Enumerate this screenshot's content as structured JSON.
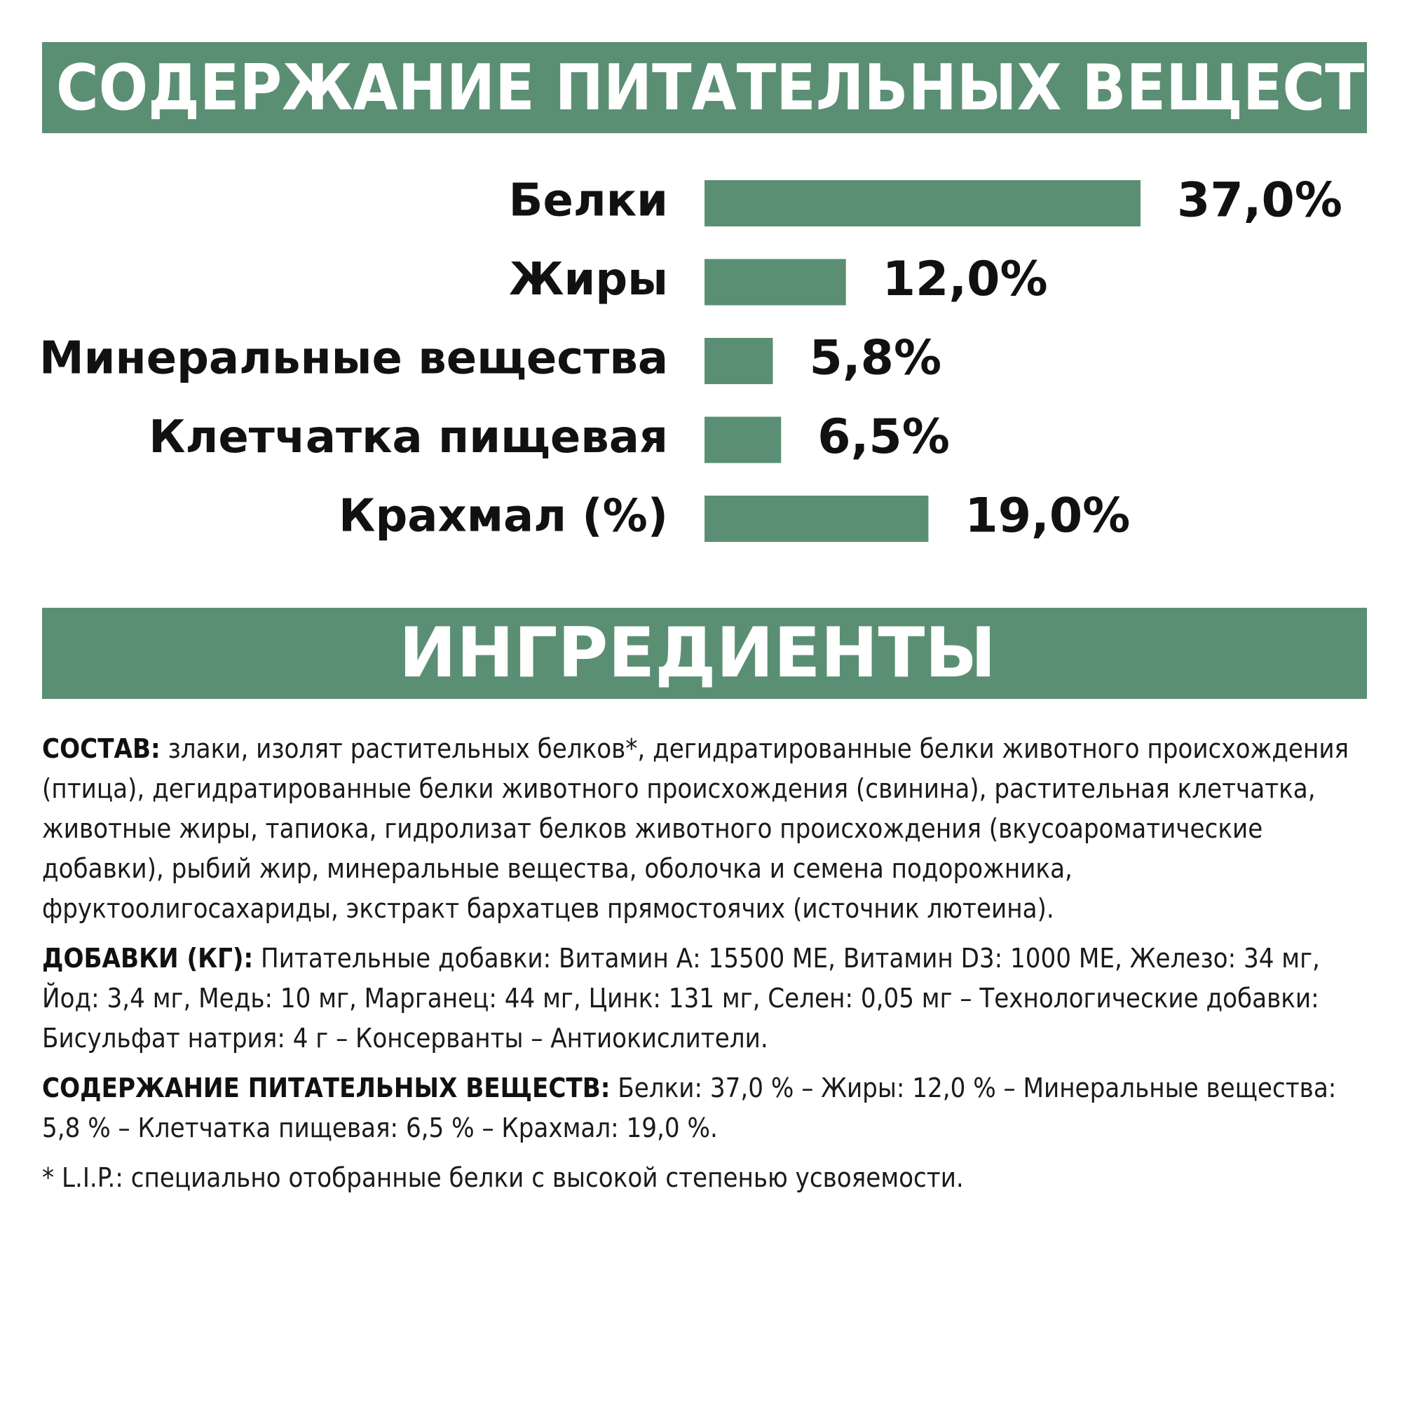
{
  "header": {
    "nutrients_title": "СОДЕРЖАНИЕ ПИТАТЕЛЬНЫХ ВЕЩЕСТВ",
    "ingredients_title": "ИНГРЕДИЕНТЫ"
  },
  "colors": {
    "accent": "#5b8f73",
    "text": "#111111",
    "background": "#ffffff"
  },
  "chart_data": {
    "type": "bar",
    "orientation": "horizontal",
    "categories": [
      "Белки",
      "Жиры",
      "Минеральные вещества",
      "Клетчатка пищевая",
      "Крахмал (%)"
    ],
    "values": [
      37.0,
      12.0,
      5.8,
      6.5,
      19.0
    ],
    "value_labels": [
      "37,0%",
      "12,0%",
      "5,8%",
      "6,5%",
      "19,0%"
    ],
    "title": "",
    "xlabel": "",
    "ylabel": "",
    "xlim": [
      0,
      37.0
    ],
    "grid": false,
    "legend": "none"
  },
  "ingredients": {
    "composition_label": "СОСТАВ:",
    "composition_text": " злаки, изолят растительных белков*, дегидратированные белки животного происхождения (птица), дегидратированные белки животного происхождения (свинина), растительная клетчатка, животные жиры, тапиока, гидролизат белков животного происхождения (вкусоароматические добавки), рыбий жир, минеральные вещества, оболочка и семена подорожника, фруктоолигосахариды, экстракт бархатцев прямостоячих (источник лютеина).",
    "additives_label": "ДОБАВКИ (КГ):",
    "additives_text": " Питательные добавки: Витамин А: 15500 МЕ, Витамин D3: 1000 МЕ, Железо: 34 мг, Йод: 3,4 мг, Медь: 10 мг, Марганец: 44 мг, Цинк: 131 мг, Селен: 0,05 мг – Технологические добавки: Бисульфат натрия: 4 г – Консерванты – Антиокислители.",
    "nutrients_label": "СОДЕРЖАНИЕ ПИТАТЕЛЬНЫХ ВЕЩЕСТВ:",
    "nutrients_text": " Белки: 37,0 % – Жиры: 12,0 % – Минеральные вещества: 5,8 % – Клетчатка пищевая: 6,5 % – Крахмал: 19,0 %.",
    "footnote": "* L.I.P.: специально отобранные белки с высокой степенью усвояемости."
  }
}
